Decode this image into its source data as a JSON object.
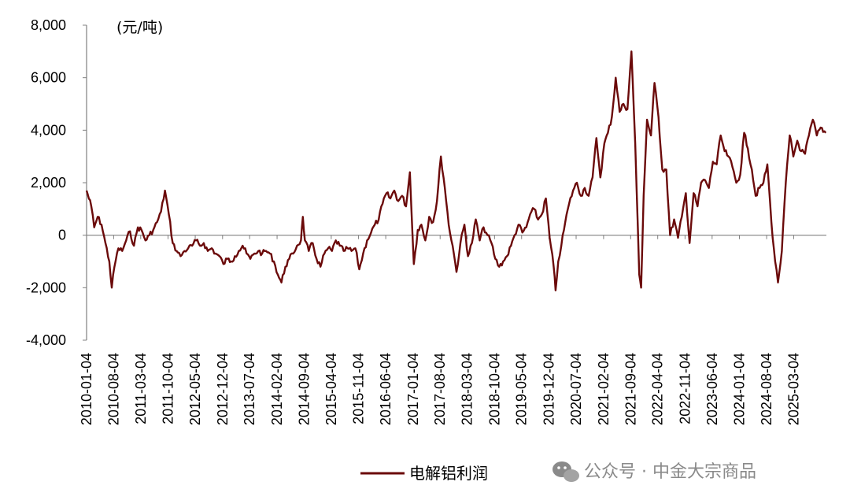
{
  "chart_data": {
    "type": "line",
    "unit_label": "(元/吨)",
    "x_ticks": [
      "2010-01-04",
      "2010-08-04",
      "2011-03-04",
      "2011-10-04",
      "2012-05-04",
      "2012-12-04",
      "2013-07-04",
      "2014-02-04",
      "2014-09-04",
      "2015-04-04",
      "2015-11-04",
      "2016-06-04",
      "2017-01-04",
      "2017-08-04",
      "2018-03-04",
      "2018-10-04",
      "2019-05-04",
      "2019-12-04",
      "2020-07-04",
      "2021-02-04",
      "2021-09-04",
      "2022-04-04",
      "2022-11-04",
      "2023-06-04",
      "2024-01-04",
      "2024-08-04",
      "2025-03-04"
    ],
    "y_ticks": [
      "8,000",
      "6,000",
      "4,000",
      "2,000",
      "0",
      "-2,000",
      "-4,000"
    ],
    "ylim": [
      -4000,
      8000
    ],
    "xlim": [
      "2010-01-04",
      "2025-11-15"
    ],
    "grid": false,
    "legend_position": "bottom",
    "series": [
      {
        "name": "电解铝利润",
        "color": "#6b0a0a",
        "points": [
          [
            "2010-01-04",
            1700
          ],
          [
            "2010-02-10",
            1100
          ],
          [
            "2010-03-05",
            300
          ],
          [
            "2010-04-01",
            700
          ],
          [
            "2010-05-01",
            400
          ],
          [
            "2010-06-01",
            -300
          ],
          [
            "2010-07-01",
            -1000
          ],
          [
            "2010-07-20",
            -2000
          ],
          [
            "2010-08-10",
            -1200
          ],
          [
            "2010-09-10",
            -500
          ],
          [
            "2010-10-10",
            -600
          ],
          [
            "2010-11-10",
            -200
          ],
          [
            "2010-12-10",
            150
          ],
          [
            "2011-01-10",
            -400
          ],
          [
            "2011-02-10",
            300
          ],
          [
            "2011-03-10",
            200
          ],
          [
            "2011-04-10",
            -200
          ],
          [
            "2011-05-10",
            0
          ],
          [
            "2011-06-10",
            200
          ],
          [
            "2011-07-10",
            500
          ],
          [
            "2011-08-10",
            900
          ],
          [
            "2011-09-10",
            1700
          ],
          [
            "2011-10-10",
            800
          ],
          [
            "2011-11-10",
            -300
          ],
          [
            "2011-12-10",
            -600
          ],
          [
            "2012-01-10",
            -800
          ],
          [
            "2012-02-10",
            -600
          ],
          [
            "2012-03-10",
            -500
          ],
          [
            "2012-04-10",
            -400
          ],
          [
            "2012-05-10",
            -200
          ],
          [
            "2012-06-10",
            -400
          ],
          [
            "2012-07-10",
            -300
          ],
          [
            "2012-08-10",
            -600
          ],
          [
            "2012-09-10",
            -500
          ],
          [
            "2012-10-10",
            -700
          ],
          [
            "2012-11-10",
            -800
          ],
          [
            "2012-12-10",
            -1100
          ],
          [
            "2013-01-10",
            -900
          ],
          [
            "2013-02-10",
            -1000
          ],
          [
            "2013-03-10",
            -800
          ],
          [
            "2013-04-10",
            -600
          ],
          [
            "2013-05-10",
            -400
          ],
          [
            "2013-06-10",
            -700
          ],
          [
            "2013-07-10",
            -900
          ],
          [
            "2013-08-10",
            -700
          ],
          [
            "2013-09-10",
            -600
          ],
          [
            "2013-10-10",
            -700
          ],
          [
            "2013-11-10",
            -600
          ],
          [
            "2013-12-10",
            -700
          ],
          [
            "2014-01-10",
            -1000
          ],
          [
            "2014-02-10",
            -1500
          ],
          [
            "2014-03-10",
            -1800
          ],
          [
            "2014-04-10",
            -1200
          ],
          [
            "2014-05-10",
            -900
          ],
          [
            "2014-06-10",
            -700
          ],
          [
            "2014-07-10",
            -400
          ],
          [
            "2014-08-10",
            -200
          ],
          [
            "2014-08-25",
            700
          ],
          [
            "2014-09-10",
            -200
          ],
          [
            "2014-10-10",
            -600
          ],
          [
            "2014-11-10",
            -300
          ],
          [
            "2014-12-10",
            -900
          ],
          [
            "2015-01-10",
            -1200
          ],
          [
            "2015-02-10",
            -700
          ],
          [
            "2015-03-10",
            -500
          ],
          [
            "2015-04-10",
            -600
          ],
          [
            "2015-05-10",
            -200
          ],
          [
            "2015-06-10",
            -400
          ],
          [
            "2015-07-10",
            -600
          ],
          [
            "2015-08-10",
            -500
          ],
          [
            "2015-09-10",
            -600
          ],
          [
            "2015-10-10",
            -500
          ],
          [
            "2015-11-10",
            -1300
          ],
          [
            "2015-12-10",
            -700
          ],
          [
            "2016-01-10",
            -200
          ],
          [
            "2016-02-10",
            100
          ],
          [
            "2016-03-10",
            400
          ],
          [
            "2016-04-10",
            600
          ],
          [
            "2016-05-10",
            1200
          ],
          [
            "2016-06-10",
            1600
          ],
          [
            "2016-07-10",
            1400
          ],
          [
            "2016-08-10",
            1700
          ],
          [
            "2016-09-10",
            1300
          ],
          [
            "2016-10-10",
            1500
          ],
          [
            "2016-11-10",
            1100
          ],
          [
            "2016-12-10",
            2400
          ],
          [
            "2017-01-10",
            -1100
          ],
          [
            "2017-02-10",
            200
          ],
          [
            "2017-03-10",
            400
          ],
          [
            "2017-04-10",
            -200
          ],
          [
            "2017-05-10",
            700
          ],
          [
            "2017-06-10",
            500
          ],
          [
            "2017-07-10",
            1300
          ],
          [
            "2017-08-10",
            3000
          ],
          [
            "2017-09-10",
            1800
          ],
          [
            "2017-10-10",
            400
          ],
          [
            "2017-11-10",
            -400
          ],
          [
            "2017-12-10",
            -1400
          ],
          [
            "2018-01-10",
            -300
          ],
          [
            "2018-02-10",
            400
          ],
          [
            "2018-03-10",
            -800
          ],
          [
            "2018-04-10",
            -300
          ],
          [
            "2018-05-10",
            600
          ],
          [
            "2018-06-10",
            -200
          ],
          [
            "2018-07-10",
            300
          ],
          [
            "2018-08-10",
            0
          ],
          [
            "2018-09-10",
            -300
          ],
          [
            "2018-10-10",
            -900
          ],
          [
            "2018-11-10",
            -1200
          ],
          [
            "2018-12-10",
            -1000
          ],
          [
            "2019-01-10",
            -800
          ],
          [
            "2019-02-10",
            -400
          ],
          [
            "2019-03-10",
            0
          ],
          [
            "2019-04-10",
            400
          ],
          [
            "2019-05-10",
            100
          ],
          [
            "2019-06-10",
            300
          ],
          [
            "2019-07-10",
            800
          ],
          [
            "2019-08-10",
            1000
          ],
          [
            "2019-09-10",
            600
          ],
          [
            "2019-10-10",
            800
          ],
          [
            "2019-11-10",
            1400
          ],
          [
            "2019-12-10",
            -100
          ],
          [
            "2020-01-10",
            -1200
          ],
          [
            "2020-01-25",
            -2100
          ],
          [
            "2020-02-15",
            -1000
          ],
          [
            "2020-03-10",
            -400
          ],
          [
            "2020-04-10",
            500
          ],
          [
            "2020-05-10",
            1200
          ],
          [
            "2020-06-10",
            1700
          ],
          [
            "2020-07-10",
            2000
          ],
          [
            "2020-08-10",
            1500
          ],
          [
            "2020-09-10",
            1800
          ],
          [
            "2020-10-10",
            1500
          ],
          [
            "2020-11-10",
            2200
          ],
          [
            "2020-12-10",
            3700
          ],
          [
            "2021-01-10",
            2200
          ],
          [
            "2021-02-10",
            3500
          ],
          [
            "2021-03-10",
            3900
          ],
          [
            "2021-04-10",
            4500
          ],
          [
            "2021-05-10",
            6000
          ],
          [
            "2021-06-10",
            4700
          ],
          [
            "2021-07-10",
            5000
          ],
          [
            "2021-08-10",
            4800
          ],
          [
            "2021-09-10",
            7000
          ],
          [
            "2021-10-10",
            3500
          ],
          [
            "2021-11-10",
            -1500
          ],
          [
            "2021-11-25",
            -2000
          ],
          [
            "2021-12-15",
            1500
          ],
          [
            "2022-01-10",
            4400
          ],
          [
            "2022-02-10",
            3800
          ],
          [
            "2022-03-10",
            5800
          ],
          [
            "2022-04-10",
            4500
          ],
          [
            "2022-05-10",
            2500
          ],
          [
            "2022-06-10",
            2500
          ],
          [
            "2022-07-10",
            0
          ],
          [
            "2022-08-10",
            600
          ],
          [
            "2022-09-10",
            -100
          ],
          [
            "2022-10-10",
            700
          ],
          [
            "2022-11-10",
            1600
          ],
          [
            "2022-12-10",
            -300
          ],
          [
            "2023-01-10",
            1600
          ],
          [
            "2023-02-10",
            1100
          ],
          [
            "2023-03-10",
            2000
          ],
          [
            "2023-04-10",
            2100
          ],
          [
            "2023-05-10",
            1800
          ],
          [
            "2023-06-10",
            2800
          ],
          [
            "2023-07-10",
            2700
          ],
          [
            "2023-08-10",
            3800
          ],
          [
            "2023-09-10",
            3200
          ],
          [
            "2023-10-10",
            3000
          ],
          [
            "2023-11-10",
            2600
          ],
          [
            "2023-12-10",
            2000
          ],
          [
            "2024-01-10",
            2300
          ],
          [
            "2024-02-10",
            3900
          ],
          [
            "2024-03-10",
            3300
          ],
          [
            "2024-04-10",
            2500
          ],
          [
            "2024-05-10",
            1500
          ],
          [
            "2024-06-10",
            1800
          ],
          [
            "2024-07-10",
            2000
          ],
          [
            "2024-08-10",
            2700
          ],
          [
            "2024-09-10",
            500
          ],
          [
            "2024-10-10",
            -1000
          ],
          [
            "2024-11-01",
            -1800
          ],
          [
            "2024-12-01",
            -600
          ],
          [
            "2025-01-01",
            2000
          ],
          [
            "2025-02-01",
            3800
          ],
          [
            "2025-03-01",
            3000
          ],
          [
            "2025-04-01",
            3600
          ],
          [
            "2025-05-01",
            3200
          ],
          [
            "2025-06-01",
            3100
          ],
          [
            "2025-07-01",
            3800
          ],
          [
            "2025-08-01",
            4400
          ],
          [
            "2025-09-01",
            3800
          ],
          [
            "2025-10-01",
            4100
          ],
          [
            "2025-11-10",
            3900
          ]
        ]
      }
    ]
  },
  "watermark": {
    "icon": "wechat-icon",
    "text": "公众号 · 中金大宗商品"
  }
}
